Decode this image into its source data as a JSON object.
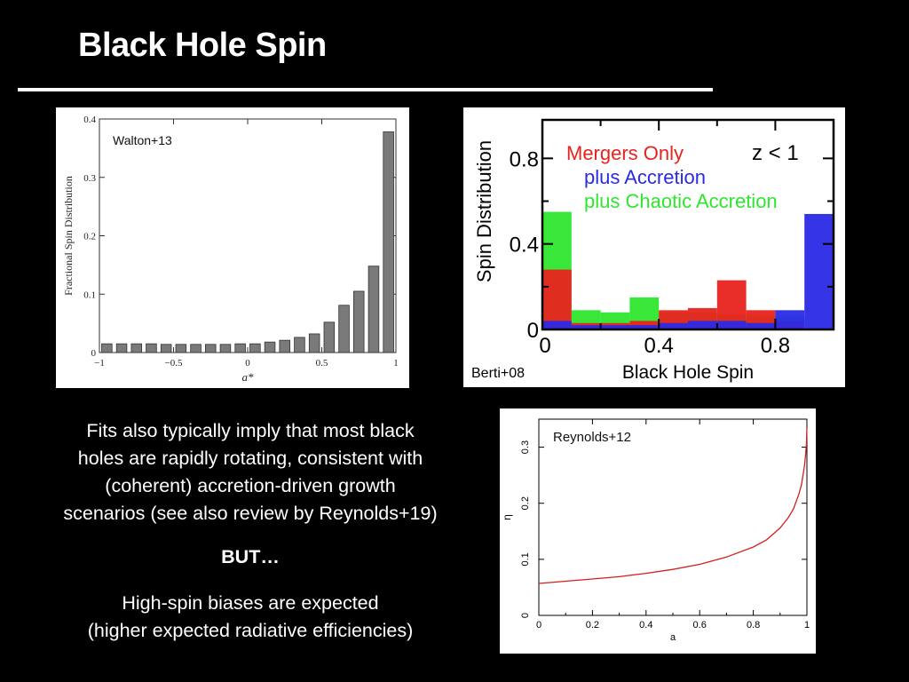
{
  "slide": {
    "title": "Black Hole Spin",
    "paragraph1_lines": [
      "Fits also typically imply that most black",
      "holes are rapidly rotating, consistent with",
      "(coherent) accretion-driven growth",
      "scenarios (see also review by Reynolds+19)"
    ],
    "but": "BUT…",
    "paragraph2_lines": [
      "High-spin biases are expected",
      "(higher expected radiative efficiencies)"
    ]
  },
  "chart_data": [
    {
      "type": "bar",
      "citation": "Walton+13",
      "xlabel": "a*",
      "ylabel": "Fractional Spin Distribution",
      "xlim": [
        -1,
        1
      ],
      "ylim": [
        0,
        0.4
      ],
      "x_ticks": [
        "−1",
        "−0.5",
        "0",
        "0.5",
        "1"
      ],
      "y_ticks": [
        "0",
        "0.1",
        "0.2",
        "0.3",
        "0.4"
      ],
      "bin_width": 0.1,
      "bin_centers": [
        -0.95,
        -0.85,
        -0.75,
        -0.65,
        -0.55,
        -0.45,
        -0.35,
        -0.25,
        -0.15,
        -0.05,
        0.05,
        0.15,
        0.25,
        0.35,
        0.45,
        0.55,
        0.65,
        0.75,
        0.85,
        0.95
      ],
      "values": [
        0.015,
        0.015,
        0.015,
        0.015,
        0.014,
        0.014,
        0.014,
        0.014,
        0.014,
        0.015,
        0.015,
        0.018,
        0.021,
        0.026,
        0.032,
        0.052,
        0.081,
        0.105,
        0.148,
        0.378
      ],
      "color": "#7a7a7a"
    },
    {
      "type": "bar",
      "citation": "Berti+08",
      "xlabel": "Black Hole Spin",
      "ylabel": "Spin Distribution",
      "xlim": [
        0,
        1
      ],
      "ylim": [
        0,
        0.98
      ],
      "x_ticks": [
        "0",
        "0.4",
        "0.8"
      ],
      "y_ticks": [
        "0",
        "0.4",
        "0.8"
      ],
      "annotation": "z < 1",
      "bin_edges": [
        0,
        0.1,
        0.2,
        0.3,
        0.4,
        0.5,
        0.6,
        0.7,
        0.8,
        0.9,
        1.0
      ],
      "series": [
        {
          "name": "Mergers Only",
          "color": "#e8231e",
          "values": [
            0.28,
            0.03,
            0.03,
            0.04,
            0.09,
            0.1,
            0.23,
            0.09,
            0.04,
            0.0
          ]
        },
        {
          "name": "plus Accretion",
          "color": "#2a2ae6",
          "values": [
            0.04,
            0.02,
            0.02,
            0.02,
            0.03,
            0.04,
            0.04,
            0.03,
            0.09,
            0.54
          ]
        },
        {
          "name": "plus Chaotic Accretion",
          "color": "#2ee62e",
          "values": [
            0.55,
            0.09,
            0.08,
            0.15,
            0.08,
            0.08,
            0.07,
            0.06,
            0.06,
            0.0
          ]
        }
      ]
    },
    {
      "type": "line",
      "citation": "Reynolds+12",
      "xlabel": "a",
      "ylabel": "η",
      "xlim": [
        0,
        1
      ],
      "ylim": [
        0,
        0.35
      ],
      "x_ticks": [
        "0",
        "0.2",
        "0.4",
        "0.6",
        "0.8",
        "1"
      ],
      "y_ticks": [
        "0",
        "0.1",
        "0.2",
        "0.3"
      ],
      "series": [
        {
          "color": "#d22020",
          "x": [
            0,
            0.1,
            0.2,
            0.3,
            0.4,
            0.5,
            0.6,
            0.7,
            0.8,
            0.85,
            0.9,
            0.93,
            0.95,
            0.97,
            0.98,
            0.99,
            0.995,
            0.998,
            1.0
          ],
          "y": [
            0.057,
            0.061,
            0.065,
            0.069,
            0.075,
            0.082,
            0.091,
            0.104,
            0.122,
            0.135,
            0.156,
            0.174,
            0.19,
            0.216,
            0.234,
            0.264,
            0.286,
            0.305,
            0.335
          ]
        }
      ]
    }
  ]
}
